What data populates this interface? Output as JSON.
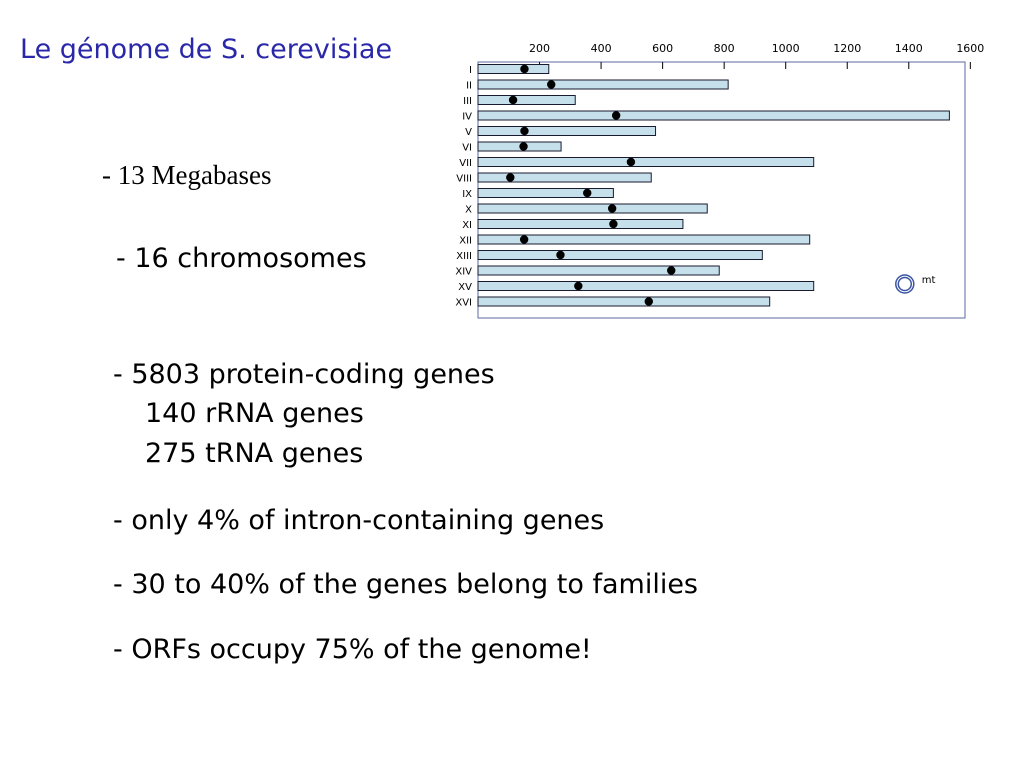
{
  "slide": {
    "title": "Le génome de S. cerevisiae",
    "bullets": {
      "megabases": "- 13 Megabases",
      "chromosomes": "- 16 chromosomes",
      "protein_genes": "- 5803 protein-coding genes",
      "rrna_genes": "140 rRNA genes",
      "trna_genes": "275 tRNA genes",
      "introns": "- only 4% of intron-containing genes",
      "families": "- 30 to 40% of the genes belong to families",
      "orfs": "- ORFs occupy 75% of the genome!"
    }
  },
  "chart_data": {
    "type": "bar",
    "orientation": "horizontal",
    "x_ticks": [
      200,
      400,
      600,
      800,
      1000,
      1200,
      1400,
      1600
    ],
    "xlim": [
      0,
      1650
    ],
    "categories": [
      "I",
      "II",
      "III",
      "IV",
      "V",
      "VI",
      "VII",
      "VIII",
      "IX",
      "X",
      "XI",
      "XII",
      "XIII",
      "XIV",
      "XV",
      "XVI"
    ],
    "lengths": [
      230,
      813,
      316,
      1532,
      577,
      270,
      1091,
      563,
      440,
      745,
      666,
      1078,
      924,
      784,
      1091,
      948
    ],
    "centromeres": [
      151,
      238,
      114,
      449,
      151,
      148,
      497,
      105,
      355,
      436,
      440,
      150,
      268,
      628,
      326,
      555
    ],
    "mitochondrial_label": "mt",
    "bar_color": "#c5e0ea"
  }
}
